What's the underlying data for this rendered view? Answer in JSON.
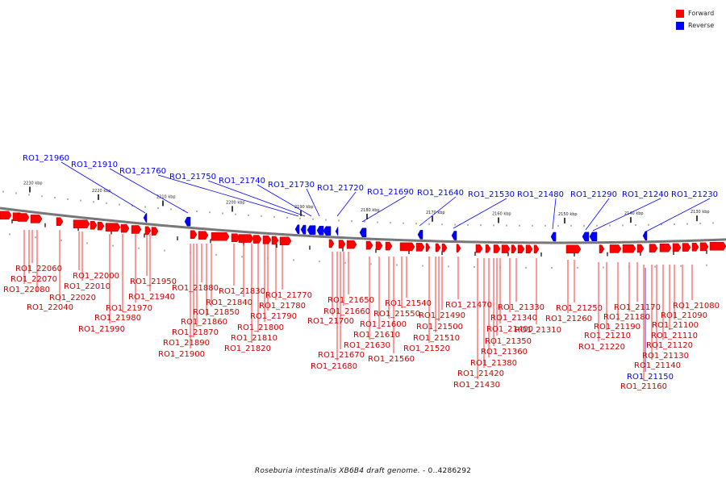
{
  "legend": [
    {
      "label": "Forward",
      "color": "#ff0000"
    },
    {
      "label": "Reverse",
      "color": "#0000ff"
    }
  ],
  "caption": {
    "italic": "Roseburia intestinalis XB6B4 draft genome.",
    "range": " - 0..4286292"
  },
  "ruler": [
    "2230 kbp",
    "2220 kbp",
    "2210 kbp",
    "2200 kbp",
    "2190 kbp",
    "2180 kbp",
    "2170 kbp",
    "2160 kbp",
    "2150 kbp",
    "2140 kbp",
    "2130 kbp"
  ],
  "reverse_genes": [
    "RO1_21960",
    "RO1_21910",
    "RO1_21760",
    "RO1_21750",
    "RO1_21740",
    "RO1_21730",
    "RO1_21720",
    "RO1_21690",
    "RO1_21640",
    "RO1_21530",
    "RO1_21480",
    "RO1_21290",
    "RO1_21240",
    "RO1_21230",
    "RO1_21150"
  ],
  "forward_genes": [
    "RO1_22060",
    "RO1_22070",
    "RO1_22080",
    "RO1_22020",
    "RO1_22040",
    "RO1_22000",
    "RO1_22010",
    "RO1_21950",
    "RO1_21940",
    "RO1_21970",
    "RO1_21980",
    "RO1_21990",
    "RO1_21880",
    "RO1_21830",
    "RO1_21840",
    "RO1_21850",
    "RO1_21860",
    "RO1_21870",
    "RO1_21890",
    "RO1_21900",
    "RO1_21770",
    "RO1_21780",
    "RO1_21790",
    "RO1_21800",
    "RO1_21810",
    "RO1_21820",
    "RO1_21650",
    "RO1_21660",
    "RO1_21700",
    "RO1_21670",
    "RO1_21680",
    "RO1_21540",
    "RO1_21550",
    "RO1_21600",
    "RO1_21610",
    "RO1_21630",
    "RO1_21560",
    "RO1_21470",
    "RO1_21490",
    "RO1_21500",
    "RO1_21510",
    "RO1_21520",
    "RO1_21400",
    "RO1_21380",
    "RO1_21420",
    "RO1_21430",
    "RO1_21330",
    "RO1_21340",
    "RO1_21350",
    "RO1_21360",
    "RO1_21310",
    "RO1_21250",
    "RO1_21260",
    "RO1_21170",
    "RO1_21180",
    "RO1_21190",
    "RO1_21210",
    "RO1_21220",
    "RO1_21080",
    "RO1_21090",
    "RO1_21100",
    "RO1_21110",
    "RO1_21120",
    "RO1_21130",
    "RO1_21140",
    "RO1_21160"
  ]
}
